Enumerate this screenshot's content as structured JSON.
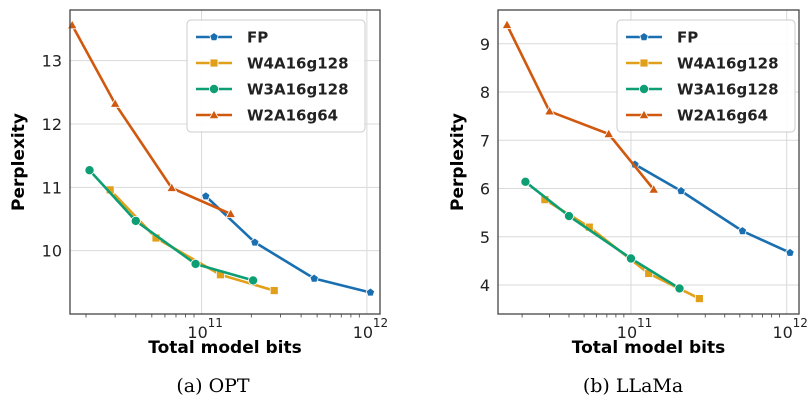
{
  "colors": {
    "FP": "#1a6fb0",
    "W4A16g128": "#e29f1a",
    "W3A16g128": "#0e9e74",
    "W2A16g64": "#d0590f",
    "grid": "#d9d9d9",
    "frame": "#444444"
  },
  "chart_data": [
    {
      "type": "line",
      "caption": "(a) OPT",
      "xlabel": "Total model bits",
      "ylabel": "Perplexity",
      "x_scale": "log",
      "xlim": [
        16000000000.0,
        1200000000000.0
      ],
      "ylim": [
        9.0,
        13.8
      ],
      "x_ticks": [
        {
          "value": 100000000000.0,
          "base": "10",
          "exp": "11"
        },
        {
          "value": 1000000000000.0,
          "base": "10",
          "exp": "12"
        }
      ],
      "y_ticks": [
        {
          "value": 10,
          "label": "10"
        },
        {
          "value": 11,
          "label": "11"
        },
        {
          "value": 12,
          "label": "12"
        },
        {
          "value": 13,
          "label": "13"
        }
      ],
      "grid": true,
      "legend": "top-right",
      "series": [
        {
          "name": "FP",
          "marker": "pentagon",
          "x": [
            106000000000.0,
            210000000000.0,
            480000000000.0,
            1050000000000.0
          ],
          "y": [
            10.86,
            10.13,
            9.56,
            9.34
          ]
        },
        {
          "name": "W4A16g128",
          "marker": "square",
          "x": [
            28000000000.0,
            53000000000.0,
            130000000000.0,
            275000000000.0
          ],
          "y": [
            10.96,
            10.2,
            9.62,
            9.37
          ]
        },
        {
          "name": "W3A16g128",
          "marker": "circle",
          "x": [
            21000000000.0,
            40000000000.0,
            92000000000.0,
            205000000000.0
          ],
          "y": [
            11.27,
            10.47,
            9.79,
            9.53
          ]
        },
        {
          "name": "W2A16g64",
          "marker": "triangle",
          "x": [
            16500000000.0,
            30000000000.0,
            66000000000.0,
            150000000000.0
          ],
          "y": [
            13.56,
            12.32,
            10.99,
            10.58
          ]
        }
      ]
    },
    {
      "type": "line",
      "caption": "(b) LLaMa",
      "xlabel": "Total model bits",
      "ylabel": "Perplexity",
      "x_scale": "log",
      "xlim": [
        14000000000.0,
        1200000000000.0
      ],
      "ylim": [
        3.4,
        9.7
      ],
      "x_ticks": [
        {
          "value": 100000000000.0,
          "base": "10",
          "exp": "11"
        },
        {
          "value": 1000000000000.0,
          "base": "10",
          "exp": "12"
        }
      ],
      "y_ticks": [
        {
          "value": 4,
          "label": "4"
        },
        {
          "value": 5,
          "label": "5"
        },
        {
          "value": 6,
          "label": "6"
        },
        {
          "value": 7,
          "label": "7"
        },
        {
          "value": 8,
          "label": "8"
        },
        {
          "value": 9,
          "label": "9"
        }
      ],
      "grid": true,
      "legend": "top-right",
      "series": [
        {
          "name": "FP",
          "marker": "pentagon",
          "x": [
            106000000000.0,
            210000000000.0,
            520000000000.0,
            1050000000000.0
          ],
          "y": [
            6.5,
            5.95,
            5.12,
            4.67
          ]
        },
        {
          "name": "W4A16g128",
          "marker": "square",
          "x": [
            28000000000.0,
            54000000000.0,
            130000000000.0,
            275000000000.0
          ],
          "y": [
            5.77,
            5.2,
            4.24,
            3.72
          ]
        },
        {
          "name": "W3A16g128",
          "marker": "circle",
          "x": [
            21000000000.0,
            40000000000.0,
            100000000000.0,
            205000000000.0
          ],
          "y": [
            6.14,
            5.43,
            4.55,
            3.93
          ]
        },
        {
          "name": "W2A16g64",
          "marker": "triangle",
          "x": [
            16000000000.0,
            30000000000.0,
            72000000000.0,
            140000000000.0
          ],
          "y": [
            9.39,
            7.6,
            7.13,
            5.98
          ]
        }
      ]
    }
  ]
}
